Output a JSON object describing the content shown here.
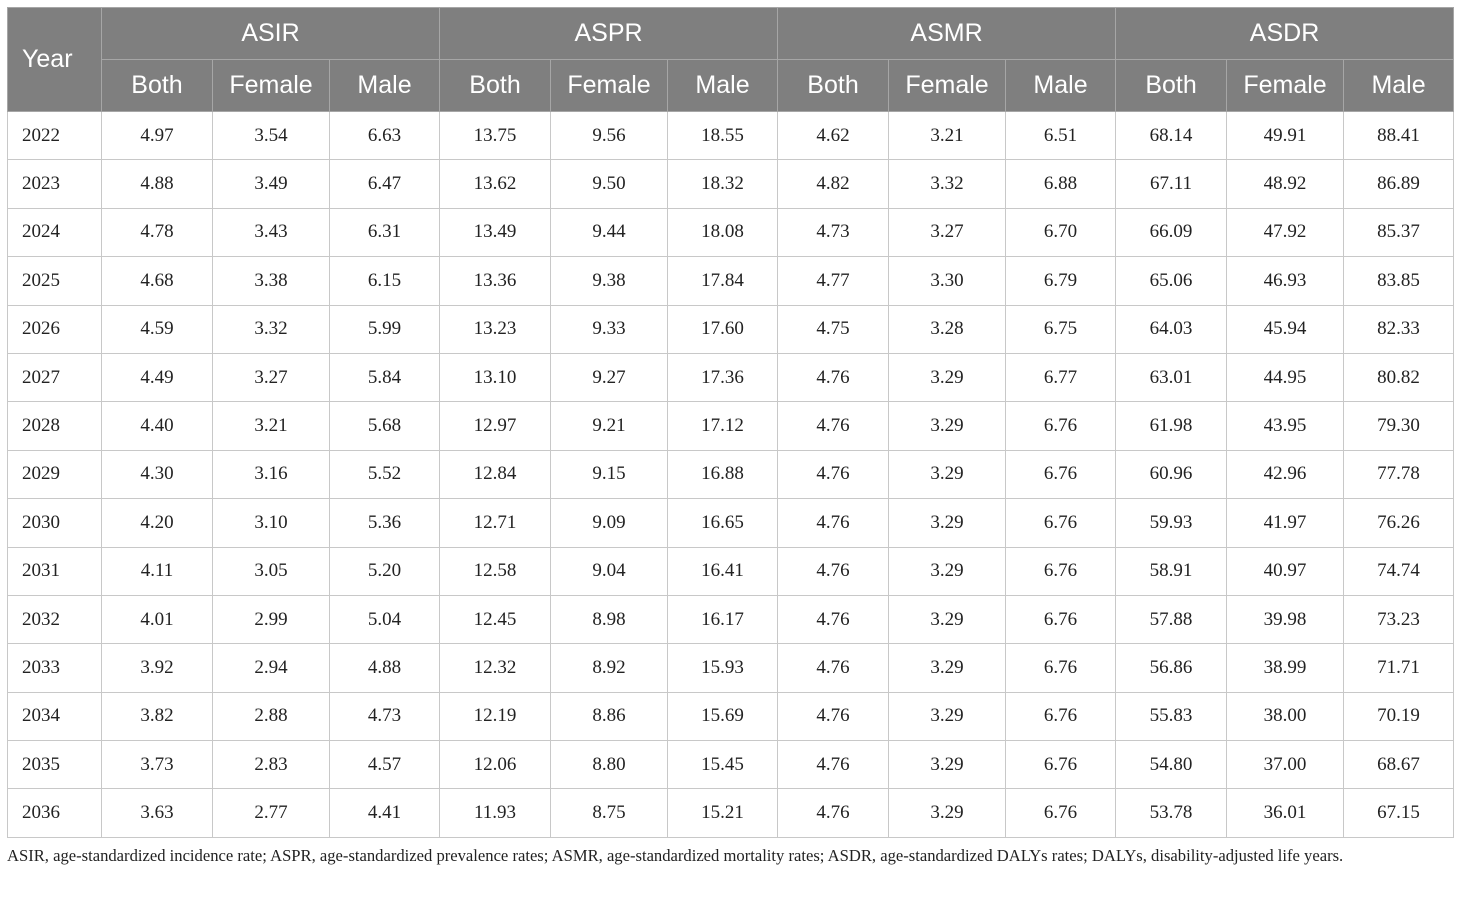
{
  "table": {
    "year_header": "Year",
    "groups": [
      "ASIR",
      "ASPR",
      "ASMR",
      "ASDR"
    ],
    "subheaders": [
      "Both",
      "Female",
      "Male"
    ],
    "rows": [
      {
        "year": "2022",
        "values": [
          "4.97",
          "3.54",
          "6.63",
          "13.75",
          "9.56",
          "18.55",
          "4.62",
          "3.21",
          "6.51",
          "68.14",
          "49.91",
          "88.41"
        ]
      },
      {
        "year": "2023",
        "values": [
          "4.88",
          "3.49",
          "6.47",
          "13.62",
          "9.50",
          "18.32",
          "4.82",
          "3.32",
          "6.88",
          "67.11",
          "48.92",
          "86.89"
        ]
      },
      {
        "year": "2024",
        "values": [
          "4.78",
          "3.43",
          "6.31",
          "13.49",
          "9.44",
          "18.08",
          "4.73",
          "3.27",
          "6.70",
          "66.09",
          "47.92",
          "85.37"
        ]
      },
      {
        "year": "2025",
        "values": [
          "4.68",
          "3.38",
          "6.15",
          "13.36",
          "9.38",
          "17.84",
          "4.77",
          "3.30",
          "6.79",
          "65.06",
          "46.93",
          "83.85"
        ]
      },
      {
        "year": "2026",
        "values": [
          "4.59",
          "3.32",
          "5.99",
          "13.23",
          "9.33",
          "17.60",
          "4.75",
          "3.28",
          "6.75",
          "64.03",
          "45.94",
          "82.33"
        ]
      },
      {
        "year": "2027",
        "values": [
          "4.49",
          "3.27",
          "5.84",
          "13.10",
          "9.27",
          "17.36",
          "4.76",
          "3.29",
          "6.77",
          "63.01",
          "44.95",
          "80.82"
        ]
      },
      {
        "year": "2028",
        "values": [
          "4.40",
          "3.21",
          "5.68",
          "12.97",
          "9.21",
          "17.12",
          "4.76",
          "3.29",
          "6.76",
          "61.98",
          "43.95",
          "79.30"
        ]
      },
      {
        "year": "2029",
        "values": [
          "4.30",
          "3.16",
          "5.52",
          "12.84",
          "9.15",
          "16.88",
          "4.76",
          "3.29",
          "6.76",
          "60.96",
          "42.96",
          "77.78"
        ]
      },
      {
        "year": "2030",
        "values": [
          "4.20",
          "3.10",
          "5.36",
          "12.71",
          "9.09",
          "16.65",
          "4.76",
          "3.29",
          "6.76",
          "59.93",
          "41.97",
          "76.26"
        ]
      },
      {
        "year": "2031",
        "values": [
          "4.11",
          "3.05",
          "5.20",
          "12.58",
          "9.04",
          "16.41",
          "4.76",
          "3.29",
          "6.76",
          "58.91",
          "40.97",
          "74.74"
        ]
      },
      {
        "year": "2032",
        "values": [
          "4.01",
          "2.99",
          "5.04",
          "12.45",
          "8.98",
          "16.17",
          "4.76",
          "3.29",
          "6.76",
          "57.88",
          "39.98",
          "73.23"
        ]
      },
      {
        "year": "2033",
        "values": [
          "3.92",
          "2.94",
          "4.88",
          "12.32",
          "8.92",
          "15.93",
          "4.76",
          "3.29",
          "6.76",
          "56.86",
          "38.99",
          "71.71"
        ]
      },
      {
        "year": "2034",
        "values": [
          "3.82",
          "2.88",
          "4.73",
          "12.19",
          "8.86",
          "15.69",
          "4.76",
          "3.29",
          "6.76",
          "55.83",
          "38.00",
          "70.19"
        ]
      },
      {
        "year": "2035",
        "values": [
          "3.73",
          "2.83",
          "4.57",
          "12.06",
          "8.80",
          "15.45",
          "4.76",
          "3.29",
          "6.76",
          "54.80",
          "37.00",
          "68.67"
        ]
      },
      {
        "year": "2036",
        "values": [
          "3.63",
          "2.77",
          "4.41",
          "11.93",
          "8.75",
          "15.21",
          "4.76",
          "3.29",
          "6.76",
          "53.78",
          "36.01",
          "67.15"
        ]
      }
    ]
  },
  "footnote": "ASIR, age-standardized incidence rate; ASPR, age-standardized prevalence rates; ASMR, age-standardized mortality rates; ASDR, age-standardized DALYs rates; DALYs, disability-adjusted life years.",
  "colors": {
    "header_bg": "#7f7f7f",
    "header_text": "#ffffff",
    "grid": "#c8c8c8"
  }
}
